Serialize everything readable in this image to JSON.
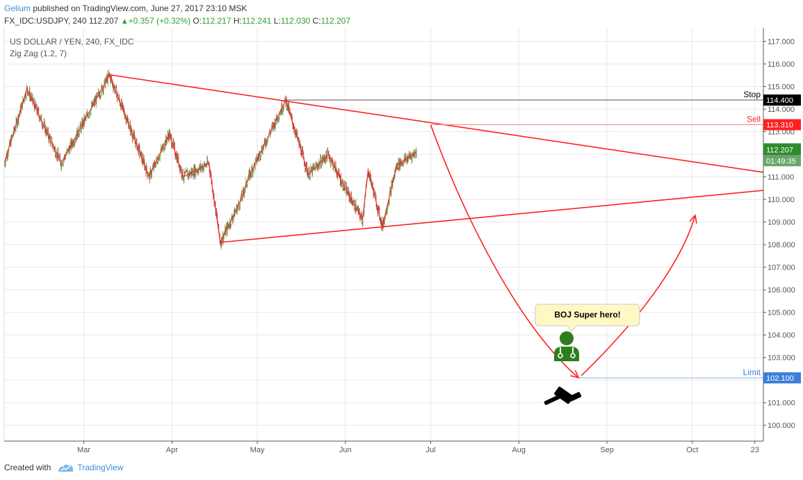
{
  "header": {
    "publisher": "Gelium",
    "published_text": "published on TradingView.com, June 27, 2017 23:10 MSK",
    "symbol": "FX_IDC:USDJPY, 240",
    "last": "112.207",
    "change": "+0.357 (+0.32%)",
    "o_label": "O:",
    "o_val": "112.217",
    "h_label": "H:",
    "h_val": "112.241",
    "l_label": "L:",
    "l_val": "112.030",
    "c_label": "C:",
    "c_val": "112.207"
  },
  "legend": {
    "title": "US DOLLAR / YEN, 240, FX_IDC",
    "indicator": "Zig Zag (1.2, 7)"
  },
  "footer": {
    "created_with": "Created with",
    "brand": "TradingView"
  },
  "colors": {
    "up": "#2ca02c",
    "down": "#b00000",
    "trend": "#ff2020",
    "stop": "#000000",
    "sell": "#ff2020",
    "limit": "#3d7fd9",
    "last": "#2e8b2e",
    "grid": "#e8e8e8",
    "hero": "#2e7d1f"
  },
  "chart_data": {
    "type": "line",
    "title": "US DOLLAR / YEN, 240, FX_IDC",
    "xlabel": "",
    "ylabel": "",
    "y_ticks": [
      "117.000",
      "116.000",
      "115.000",
      "114.000",
      "113.000",
      "112.000",
      "111.000",
      "110.000",
      "109.000",
      "108.000",
      "107.000",
      "106.000",
      "105.000",
      "104.000",
      "103.000",
      "102.000",
      "101.000",
      "100.000"
    ],
    "x_ticks": [
      "Mar",
      "Apr",
      "May",
      "Jun",
      "Jul",
      "Aug",
      "Sep",
      "Oct",
      "23"
    ],
    "x_tick_dates": [
      "2017-03-01",
      "2017-04-01",
      "2017-05-01",
      "2017-06-01",
      "2017-07-01",
      "2017-08-01",
      "2017-09-01",
      "2017-10-01",
      "2017-10-23"
    ],
    "ylim": [
      99.3,
      117.6
    ],
    "xlim": [
      "2017-02-01",
      "2017-10-26"
    ],
    "grid": true,
    "series": [
      {
        "name": "Zig Zag (1.2, 7)",
        "x": [
          "2017-02-01",
          "2017-02-09",
          "2017-02-21",
          "2017-03-10",
          "2017-03-24",
          "2017-03-31",
          "2017-04-05",
          "2017-04-14",
          "2017-04-18",
          "2017-04-25",
          "2017-04-28",
          "2017-05-11",
          "2017-05-19",
          "2017-05-26",
          "2017-05-31",
          "2017-06-07",
          "2017-06-09",
          "2017-06-14",
          "2017-06-19",
          "2017-06-26"
        ],
        "values": [
          111.6,
          114.9,
          111.6,
          115.5,
          111.0,
          112.9,
          111.0,
          111.6,
          108.1,
          109.9,
          111.0,
          114.4,
          111.1,
          112.0,
          110.7,
          109.1,
          111.3,
          108.8,
          111.5,
          112.1
        ]
      }
    ],
    "trendlines": [
      {
        "x": [
          "2017-03-10",
          "2017-10-26"
        ],
        "y": [
          115.52,
          111.2
        ]
      },
      {
        "x": [
          "2017-04-18",
          "2017-10-26"
        ],
        "y": [
          108.1,
          110.4
        ]
      }
    ],
    "projection": [
      {
        "x": [
          "2017-07-01",
          "2017-07-12",
          "2017-07-31",
          "2017-08-22"
        ],
        "y": [
          113.3,
          109.5,
          104.5,
          102.1
        ]
      },
      {
        "x": [
          "2017-08-23",
          "2017-09-15",
          "2017-09-28",
          "2017-10-02"
        ],
        "y": [
          102.2,
          105.0,
          107.5,
          109.3
        ]
      }
    ],
    "levels": [
      {
        "name": "Stop",
        "value": 114.4,
        "tag": "114.400"
      },
      {
        "name": "Sell",
        "value": 113.31,
        "tag": "113.310"
      },
      {
        "name": "Limit",
        "value": 102.1,
        "tag": "102.100"
      }
    ],
    "last_price": {
      "value": 112.207,
      "tag": "112.207",
      "timer": "01:49:35"
    }
  },
  "annotation": {
    "speech": "BOJ Super hero!",
    "icon": "doctor-icon",
    "gavel": "gavel-icon"
  }
}
